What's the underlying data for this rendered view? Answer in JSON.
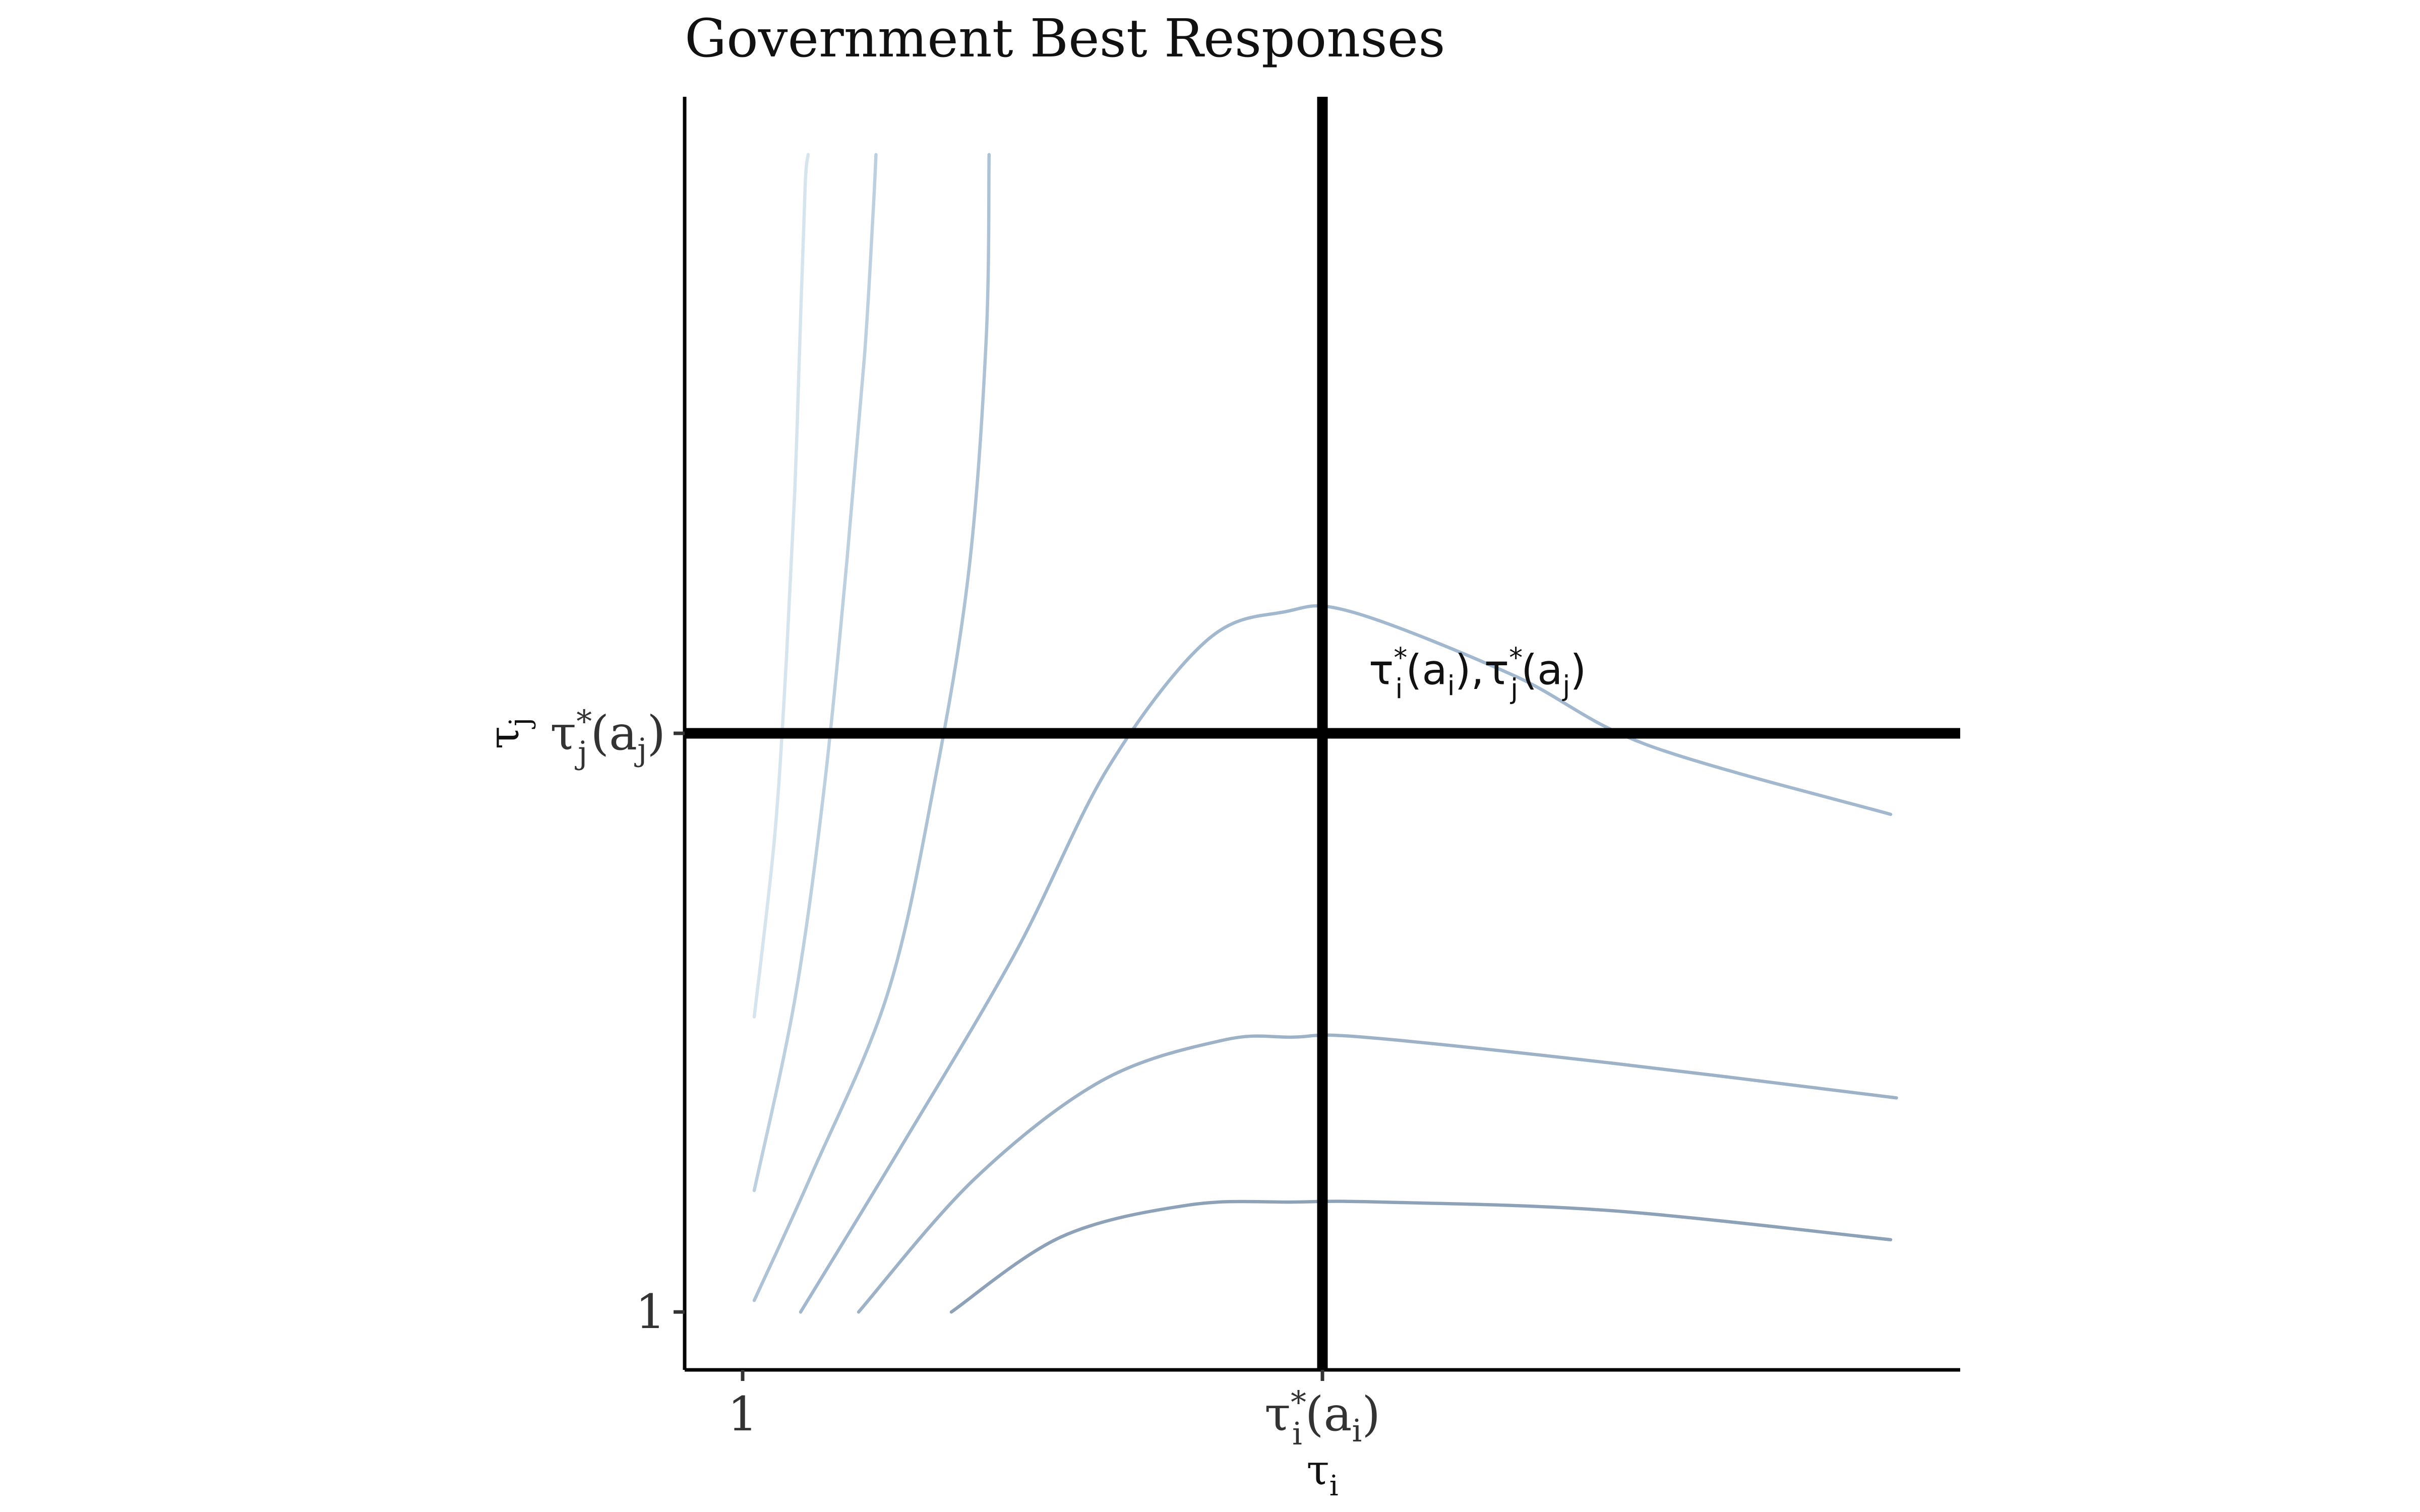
{
  "chart_data": {
    "type": "line",
    "title": "Government Best Responses",
    "xlabel": {
      "base": "τ",
      "sub": "i"
    },
    "ylabel": {
      "base": "τ",
      "sub": "j"
    },
    "xlim": [
      0.9,
      3.1
    ],
    "ylim": [
      0.9,
      3.1
    ],
    "grid": false,
    "legend": "none",
    "x_ticks": [
      {
        "value": 1,
        "label": "1"
      },
      {
        "value": 2,
        "label": {
          "base": "τ",
          "sub": "i",
          "sup": "*",
          "arg_open": "(a",
          "arg_sub": "i",
          "arg_close": ")"
        }
      }
    ],
    "y_ticks": [
      {
        "value": 1,
        "label": "1"
      },
      {
        "value": 2,
        "label": {
          "base": "τ",
          "sub": "j",
          "sup": "*",
          "arg_open": "(a",
          "arg_sub": "j",
          "arg_close": ")"
        }
      }
    ],
    "reference_lines": [
      {
        "orientation": "vertical",
        "value": 2,
        "color": "#000000"
      },
      {
        "orientation": "horizontal",
        "value": 2,
        "color": "#000000"
      }
    ],
    "annotation": {
      "x": 2.08,
      "y": 2.085,
      "parts": [
        {
          "base": "τ",
          "sub": "i",
          "sup": "*",
          "arg_open": "(a",
          "arg_sub": "i",
          "arg_close": "),"
        },
        {
          "base": "τ",
          "sub": "j",
          "sup": "*",
          "arg_open": "(a",
          "arg_sub": "j",
          "arg_close": ")"
        }
      ]
    },
    "series": [
      {
        "color": "#d6e4ee",
        "x": [
          1.02,
          1.055,
          1.075,
          1.09,
          1.1,
          1.108,
          1.113
        ],
        "y": [
          1.51,
          1.82,
          2.12,
          2.42,
          2.72,
          2.95,
          3.0
        ]
      },
      {
        "color": "#bdd0e0",
        "x": [
          1.02,
          1.09,
          1.14,
          1.18,
          1.21,
          1.225,
          1.23
        ],
        "y": [
          1.21,
          1.54,
          1.9,
          2.3,
          2.65,
          2.9,
          3.0
        ]
      },
      {
        "color": "#adc2d5",
        "x": [
          1.02,
          1.12,
          1.25,
          1.33,
          1.39,
          1.42,
          1.425
        ],
        "y": [
          1.02,
          1.24,
          1.55,
          1.91,
          2.28,
          2.68,
          3.0
        ]
      },
      {
        "color": "#a1b8cf",
        "x": [
          1.1,
          1.27,
          1.47,
          1.63,
          1.8,
          1.935,
          2.05,
          2.33,
          2.56,
          2.98
        ],
        "y": [
          1.0,
          1.28,
          1.62,
          1.94,
          2.16,
          2.21,
          2.21,
          2.1,
          1.98,
          1.86
        ]
      },
      {
        "color": "#9db2c7",
        "x": [
          1.2,
          1.4,
          1.62,
          1.83,
          1.95,
          2.07,
          2.5,
          2.99
        ],
        "y": [
          1.0,
          1.23,
          1.4,
          1.47,
          1.475,
          1.475,
          1.43,
          1.37
        ]
      },
      {
        "color": "#8da2b8",
        "x": [
          1.36,
          1.55,
          1.77,
          1.95,
          2.1,
          2.5,
          2.98
        ],
        "y": [
          1.0,
          1.13,
          1.185,
          1.19,
          1.19,
          1.175,
          1.125
        ]
      }
    ]
  }
}
